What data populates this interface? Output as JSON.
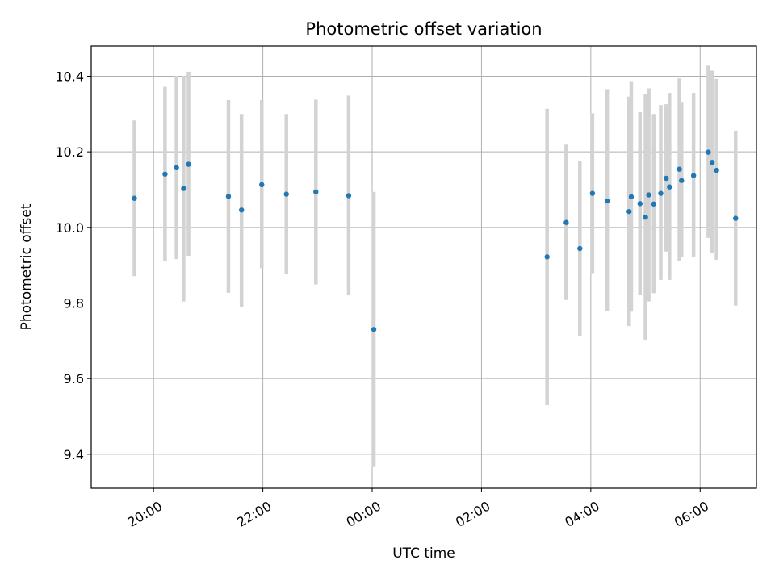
{
  "chart_data": {
    "type": "scatter",
    "title": "Photometric offset variation",
    "xlabel": "UTC time",
    "ylabel": "Photometric offset",
    "grid": true,
    "x_unit": "UTC time, hours since 00:00 on the first day",
    "xlim": [
      18.86,
      31.03
    ],
    "ylim": [
      9.31,
      10.48
    ],
    "x_ticks": [
      {
        "value": 20,
        "label": "20:00"
      },
      {
        "value": 22,
        "label": "22:00"
      },
      {
        "value": 24,
        "label": "00:00"
      },
      {
        "value": 26,
        "label": "02:00"
      },
      {
        "value": 28,
        "label": "04:00"
      },
      {
        "value": 30,
        "label": "06:00"
      }
    ],
    "y_ticks": [
      {
        "value": 9.4,
        "label": "9.4"
      },
      {
        "value": 9.6,
        "label": "9.6"
      },
      {
        "value": 9.8,
        "label": "9.8"
      },
      {
        "value": 10.0,
        "label": "10.0"
      },
      {
        "value": 10.2,
        "label": "10.2"
      },
      {
        "value": 10.4,
        "label": "10.4"
      }
    ],
    "colors": {
      "marker": "#1f77b4",
      "errorbar": "#d3d3d3"
    },
    "series": [
      {
        "points": [
          {
            "x": 19.65,
            "y": 10.077,
            "lo": 9.871,
            "hi": 10.283
          },
          {
            "x": 20.21,
            "y": 10.141,
            "lo": 9.911,
            "hi": 10.372
          },
          {
            "x": 20.42,
            "y": 10.158,
            "lo": 9.916,
            "hi": 10.401
          },
          {
            "x": 20.55,
            "y": 10.103,
            "lo": 9.804,
            "hi": 10.401
          },
          {
            "x": 20.64,
            "y": 10.167,
            "lo": 9.925,
            "hi": 10.412
          },
          {
            "x": 21.37,
            "y": 10.082,
            "lo": 9.827,
            "hi": 10.337
          },
          {
            "x": 21.61,
            "y": 10.046,
            "lo": 9.79,
            "hi": 10.3
          },
          {
            "x": 21.98,
            "y": 10.113,
            "lo": 9.892,
            "hi": 10.337
          },
          {
            "x": 22.43,
            "y": 10.088,
            "lo": 9.876,
            "hi": 10.3
          },
          {
            "x": 22.97,
            "y": 10.094,
            "lo": 9.849,
            "hi": 10.338
          },
          {
            "x": 23.57,
            "y": 10.084,
            "lo": 9.82,
            "hi": 10.349
          },
          {
            "x": 24.03,
            "y": 9.73,
            "lo": 9.366,
            "hi": 10.094
          },
          {
            "x": 27.2,
            "y": 9.922,
            "lo": 9.53,
            "hi": 10.314
          },
          {
            "x": 27.55,
            "y": 10.013,
            "lo": 9.808,
            "hi": 10.219
          },
          {
            "x": 27.8,
            "y": 9.944,
            "lo": 9.712,
            "hi": 10.176
          },
          {
            "x": 28.03,
            "y": 10.09,
            "lo": 9.879,
            "hi": 10.302
          },
          {
            "x": 28.3,
            "y": 10.07,
            "lo": 9.778,
            "hi": 10.366
          },
          {
            "x": 28.7,
            "y": 10.042,
            "lo": 9.739,
            "hi": 10.346
          },
          {
            "x": 28.74,
            "y": 10.081,
            "lo": 9.777,
            "hi": 10.387
          },
          {
            "x": 28.9,
            "y": 10.063,
            "lo": 9.821,
            "hi": 10.305
          },
          {
            "x": 29.0,
            "y": 10.027,
            "lo": 9.703,
            "hi": 10.353
          },
          {
            "x": 29.06,
            "y": 10.086,
            "lo": 9.804,
            "hi": 10.368
          },
          {
            "x": 29.15,
            "y": 10.062,
            "lo": 9.826,
            "hi": 10.3
          },
          {
            "x": 29.28,
            "y": 10.09,
            "lo": 9.861,
            "hi": 10.324
          },
          {
            "x": 29.38,
            "y": 10.13,
            "lo": 9.936,
            "hi": 10.326
          },
          {
            "x": 29.44,
            "y": 10.107,
            "lo": 9.861,
            "hi": 10.356
          },
          {
            "x": 29.62,
            "y": 10.154,
            "lo": 9.911,
            "hi": 10.394
          },
          {
            "x": 29.66,
            "y": 10.124,
            "lo": 9.922,
            "hi": 10.33
          },
          {
            "x": 29.88,
            "y": 10.137,
            "lo": 9.921,
            "hi": 10.356
          },
          {
            "x": 30.15,
            "y": 10.199,
            "lo": 9.972,
            "hi": 10.428
          },
          {
            "x": 30.22,
            "y": 10.172,
            "lo": 9.932,
            "hi": 10.415
          },
          {
            "x": 30.3,
            "y": 10.151,
            "lo": 9.914,
            "hi": 10.393
          },
          {
            "x": 30.65,
            "y": 10.024,
            "lo": 9.793,
            "hi": 10.256
          }
        ]
      }
    ]
  }
}
